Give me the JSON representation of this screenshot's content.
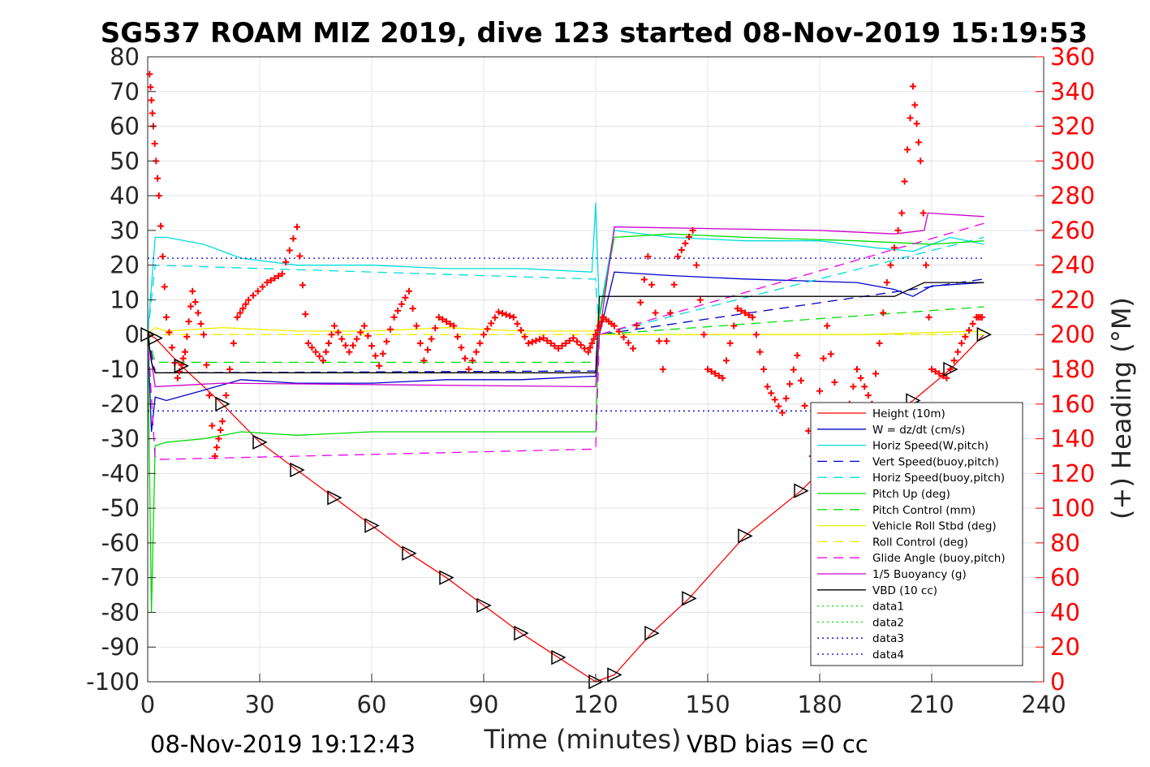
{
  "chart_data": {
    "type": "line",
    "title": "SG537 ROAM MIZ 2019, dive 123 started 08-Nov-2019 15:19:53",
    "xlabel": "Time (minutes)",
    "ylabel_right": "(+) Heading (°M)",
    "xlim": [
      0,
      240
    ],
    "ylim": [
      -100,
      80
    ],
    "ylim_right": [
      0,
      360
    ],
    "x_ticks": [
      "0",
      "30",
      "60",
      "90",
      "120",
      "150",
      "180",
      "210",
      "240"
    ],
    "y_ticks": [
      "80",
      "70",
      "60",
      "50",
      "40",
      "30",
      "20",
      "10",
      "0",
      "-10",
      "-20",
      "-30",
      "-40",
      "-50",
      "-60",
      "-70",
      "-80",
      "-90",
      "-100"
    ],
    "y_right_ticks": [
      "360",
      "340",
      "320",
      "300",
      "280",
      "260",
      "240",
      "220",
      "200",
      "180",
      "160",
      "140",
      "120",
      "100",
      "80",
      "60",
      "40",
      "20",
      "0"
    ],
    "grid": true,
    "legend_position": "bottom-right",
    "footer_left": "08-Nov-2019 19:12:43",
    "footer_right": "VBD bias =0 cc",
    "legend": [
      {
        "name": "Height (10m)",
        "color": "#ff0000",
        "dash": "solid"
      },
      {
        "name": "W = dz/dt (cm/s)",
        "color": "#0000cc",
        "dash": "solid"
      },
      {
        "name": "Horiz Speed(W,pitch)",
        "color": "#00dddd",
        "dash": "solid"
      },
      {
        "name": "Vert Speed(buoy,pitch)",
        "color": "#0000cc",
        "dash": "dashed"
      },
      {
        "name": "Horiz Speed(buoy,pitch)",
        "color": "#00dddd",
        "dash": "dashed"
      },
      {
        "name": "Pitch Up (deg)",
        "color": "#00dd00",
        "dash": "solid"
      },
      {
        "name": "Pitch Control (mm)",
        "color": "#00dd00",
        "dash": "dashed"
      },
      {
        "name": "Vehicle Roll Stbd (deg)",
        "color": "#eeee00",
        "dash": "solid"
      },
      {
        "name": "Roll Control (deg)",
        "color": "#eeee00",
        "dash": "dashed"
      },
      {
        "name": "Glide Angle (buoy,pitch)",
        "color": "#ee00ee",
        "dash": "dashed"
      },
      {
        "name": "1/5 Buoyancy (g)",
        "color": "#cc00cc",
        "dash": "solid"
      },
      {
        "name": "VBD (10 cc)",
        "color": "#000000",
        "dash": "solid"
      },
      {
        "name": "data1",
        "color": "#00dd00",
        "dash": "dotted"
      },
      {
        "name": "data2",
        "color": "#00dd00",
        "dash": "dotted"
      },
      {
        "name": "data3",
        "color": "#0000cc",
        "dash": "dotted"
      },
      {
        "name": "data4",
        "color": "#0000cc",
        "dash": "dotted"
      }
    ],
    "series": [
      {
        "name": "Height (10m)",
        "x": [
          0,
          2,
          9,
          20,
          30,
          40,
          50,
          60,
          70,
          80,
          90,
          100,
          110,
          120,
          125,
          135,
          145,
          160,
          175,
          190,
          205,
          215,
          224
        ],
        "y": [
          0,
          -1,
          -9,
          -20,
          -31,
          -39,
          -47,
          -55,
          -63,
          -70,
          -78,
          -86,
          -93,
          -100,
          -98,
          -86,
          -76,
          -58,
          -45,
          -29,
          -19,
          -10,
          0
        ]
      },
      {
        "name": "W = dz/dt (cm/s)",
        "x": [
          0,
          1,
          2,
          5,
          15,
          25,
          40,
          60,
          80,
          100,
          119,
          120,
          121,
          125,
          140,
          160,
          190,
          200,
          205,
          210,
          224
        ],
        "y": [
          0,
          -28,
          -18,
          -19,
          -16,
          -13,
          -14,
          -14,
          -13,
          -13,
          -12,
          -12,
          0,
          18,
          17,
          16,
          15,
          13,
          11,
          14,
          15
        ]
      },
      {
        "name": "Horiz Speed(W,pitch)",
        "x": [
          0,
          2,
          5,
          15,
          25,
          40,
          60,
          80,
          100,
          119,
          120,
          121,
          125,
          140,
          160,
          180,
          195,
          205,
          215,
          224
        ],
        "y": [
          0,
          28,
          28,
          26,
          22,
          20,
          20,
          19,
          19,
          18,
          38,
          6,
          30,
          28,
          27,
          27,
          25,
          24,
          28,
          26
        ]
      },
      {
        "name": "Vert Speed(buoy,pitch)",
        "x": [
          0,
          2,
          119,
          120,
          121,
          224
        ],
        "y": [
          0,
          -11,
          -10.5,
          -10.5,
          0,
          16
        ]
      },
      {
        "name": "Horiz Speed(buoy,pitch)",
        "x": [
          0,
          2,
          119,
          120,
          121,
          224
        ],
        "y": [
          0,
          20,
          16,
          16,
          0,
          28
        ]
      },
      {
        "name": "Pitch Up (deg)",
        "x": [
          0,
          1,
          2,
          5,
          15,
          25,
          40,
          60,
          80,
          100,
          119,
          120,
          121,
          125,
          140,
          160,
          190,
          210,
          224
        ],
        "y": [
          0,
          -80,
          -32,
          -31,
          -30,
          -28,
          -29,
          -28,
          -28,
          -28,
          -28,
          -28,
          5,
          28,
          29,
          28,
          27,
          26,
          27
        ]
      },
      {
        "name": "Pitch Control (mm)",
        "x": [
          0,
          2,
          119,
          120,
          121,
          224
        ],
        "y": [
          0,
          -8,
          -8,
          -8,
          0,
          8
        ]
      },
      {
        "name": "Vehicle Roll Stbd (deg)",
        "x": [
          0,
          2,
          5,
          20,
          40,
          60,
          80,
          100,
          119,
          121,
          130,
          160,
          190,
          224
        ],
        "y": [
          0,
          2,
          1,
          2,
          1,
          1,
          2,
          1,
          1,
          0,
          0,
          0,
          0,
          1
        ]
      },
      {
        "name": "Roll Control (deg)",
        "x": [
          0,
          2,
          224
        ],
        "y": [
          0,
          0,
          0
        ]
      },
      {
        "name": "Glide Angle (buoy,pitch)",
        "x": [
          0,
          2,
          119,
          120,
          121,
          224
        ],
        "y": [
          0,
          -36,
          -33,
          -33,
          0,
          32
        ]
      },
      {
        "name": "1/5 Buoyancy (g)",
        "x": [
          0,
          2,
          20,
          119,
          120,
          121,
          125,
          180,
          200,
          208,
          209,
          224
        ],
        "y": [
          0,
          -15,
          -14,
          -15,
          -15,
          0,
          31,
          30,
          29,
          30,
          35,
          34
        ]
      },
      {
        "name": "VBD (10 cc)",
        "x": [
          0,
          1,
          2,
          119,
          120,
          121,
          200,
          208,
          224
        ],
        "y": [
          0,
          -8,
          -11,
          -11,
          -11,
          11,
          11,
          15,
          15
        ]
      },
      {
        "name": "data3",
        "x": [
          0,
          224
        ],
        "y": [
          22,
          22
        ]
      },
      {
        "name": "data4",
        "x": [
          0,
          224
        ],
        "y": [
          -22,
          -22
        ]
      },
      {
        "name": "Heading",
        "axis": "right",
        "x": [
          0.5,
          1.5,
          3,
          5,
          8,
          10,
          12,
          15,
          18,
          20,
          24,
          27,
          32,
          36,
          40,
          43,
          47,
          50,
          54,
          58,
          62,
          66,
          70,
          74,
          78,
          82,
          86,
          90,
          94,
          98,
          102,
          106,
          110,
          114,
          118,
          120,
          122,
          125,
          130,
          134,
          138,
          142,
          146,
          150,
          154,
          158,
          162,
          166,
          170,
          174,
          178,
          182,
          186,
          190,
          194,
          198,
          202,
          205,
          207,
          210,
          214,
          218,
          222,
          224
        ],
        "y": [
          350,
          320,
          280,
          210,
          175,
          190,
          225,
          200,
          130,
          150,
          210,
          220,
          230,
          235,
          262,
          195,
          185,
          205,
          190,
          205,
          182,
          210,
          225,
          185,
          210,
          205,
          180,
          200,
          213,
          210,
          195,
          198,
          192,
          198,
          190,
          200,
          210,
          205,
          192,
          245,
          180,
          245,
          260,
          180,
          175,
          215,
          210,
          170,
          155,
          188,
          130,
          205,
          140,
          180,
          160,
          230,
          270,
          343,
          300,
          180,
          175,
          195,
          210,
          210
        ]
      }
    ]
  }
}
